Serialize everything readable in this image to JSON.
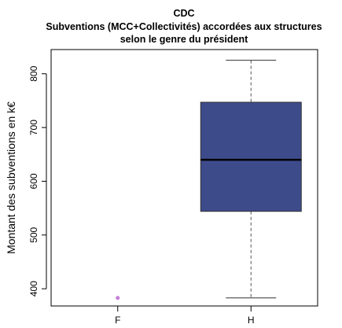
{
  "chart_data": {
    "type": "boxplot",
    "title": "CDC",
    "subtitle": [
      "Subventions (MCC+Collectivités) accordées aux structures",
      "selon le genre du président"
    ],
    "xlabel": "",
    "ylabel": "Montant des subventions en k€",
    "categories": [
      "F",
      "H"
    ],
    "ylim": [
      368,
      845
    ],
    "yticks": [
      400,
      500,
      600,
      700,
      800
    ],
    "grid": false,
    "boxes": [
      {
        "category": "F",
        "kind": "single-point",
        "value": 383,
        "color": "#c77cdb"
      },
      {
        "category": "H",
        "kind": "box",
        "min": 383,
        "q1": 544,
        "median": 640,
        "q3": 747,
        "max": 825,
        "color": "#3e4b8b"
      }
    ]
  }
}
